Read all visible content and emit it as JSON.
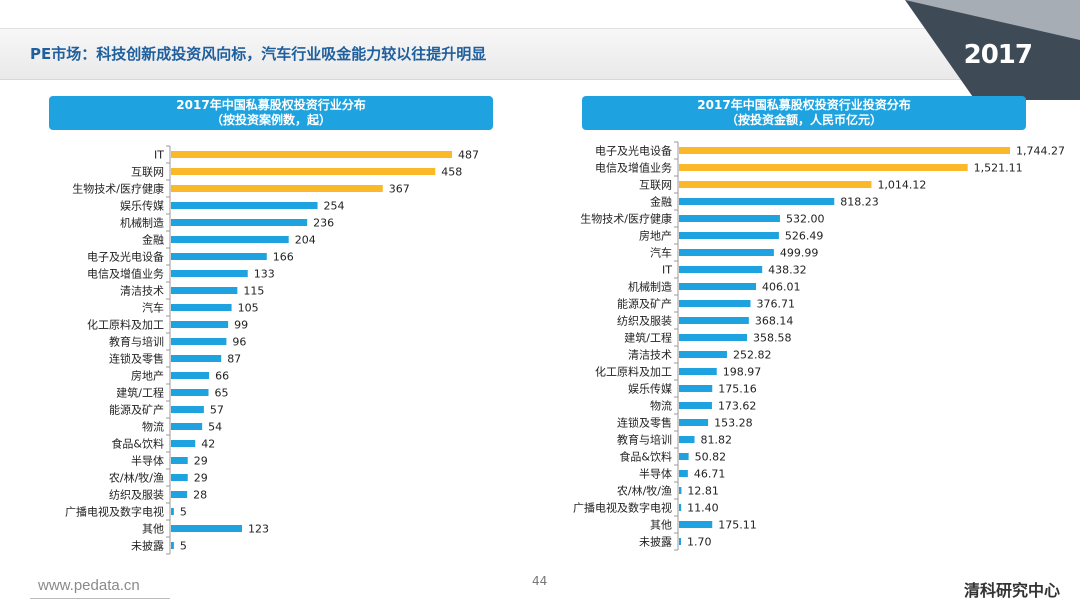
{
  "page": {
    "title": "PE市场：科技创新成投资风向标，汽车行业吸金能力较以往提升明显",
    "year_badge": "2017",
    "footer_url": "www.pedata.cn",
    "page_number": "44",
    "brand": "清科研究中心"
  },
  "colors": {
    "highlight": "#fbb829",
    "bar": "#1fa3e0",
    "header_bg": "#1fa3e0"
  },
  "chart_data": [
    {
      "type": "bar",
      "orientation": "horizontal",
      "title": "2017年中国私募股权投资行业分布",
      "subtitle": "（按投资案例数，起）",
      "categories": [
        "IT",
        "互联网",
        "生物技术/医疗健康",
        "娱乐传媒",
        "机械制造",
        "金融",
        "电子及光电设备",
        "电信及增值业务",
        "清洁技术",
        "汽车",
        "化工原料及加工",
        "教育与培训",
        "连锁及零售",
        "房地产",
        "建筑/工程",
        "能源及矿产",
        "物流",
        "食品&饮料",
        "半导体",
        "农/林/牧/渔",
        "纺织及服装",
        "广播电视及数字电视",
        "其他",
        "未披露"
      ],
      "values": [
        487,
        458,
        367,
        254,
        236,
        204,
        166,
        133,
        115,
        105,
        99,
        96,
        87,
        66,
        65,
        57,
        54,
        42,
        29,
        29,
        28,
        5,
        123,
        5
      ],
      "value_labels": [
        "487",
        "458",
        "367",
        "254",
        "236",
        "204",
        "166",
        "133",
        "115",
        "105",
        "99",
        "96",
        "87",
        "66",
        "65",
        "57",
        "54",
        "42",
        "29",
        "29",
        "28",
        "5",
        "123",
        "5"
      ],
      "highlight_count": 3,
      "xlim": [
        0,
        487
      ]
    },
    {
      "type": "bar",
      "orientation": "horizontal",
      "title": "2017年中国私募股权投资行业投资分布",
      "subtitle": "（按投资金额，人民币亿元）",
      "categories": [
        "电子及光电设备",
        "电信及增值业务",
        "互联网",
        "金融",
        "生物技术/医疗健康",
        "房地产",
        "汽车",
        "IT",
        "机械制造",
        "能源及矿产",
        "纺织及服装",
        "建筑/工程",
        "清洁技术",
        "化工原料及加工",
        "娱乐传媒",
        "物流",
        "连锁及零售",
        "教育与培训",
        "食品&饮料",
        "半导体",
        "农/林/牧/渔",
        "广播电视及数字电视",
        "其他",
        "未披露"
      ],
      "values": [
        1744.27,
        1521.11,
        1014.12,
        818.23,
        532.0,
        526.49,
        499.99,
        438.32,
        406.01,
        376.71,
        368.14,
        358.58,
        252.82,
        198.97,
        175.16,
        173.62,
        153.28,
        81.82,
        50.82,
        46.71,
        12.81,
        11.4,
        175.11,
        1.7
      ],
      "value_labels": [
        "1,744.27",
        "1,521.11",
        "1,014.12",
        "818.23",
        "532.00",
        "526.49",
        "499.99",
        "438.32",
        "406.01",
        "376.71",
        "368.14",
        "358.58",
        "252.82",
        "198.97",
        "175.16",
        "173.62",
        "153.28",
        "81.82",
        "50.82",
        "46.71",
        "12.81",
        "11.40",
        "175.11",
        "1.70"
      ],
      "highlight_count": 3,
      "xlim": [
        0,
        1744.27
      ]
    }
  ]
}
